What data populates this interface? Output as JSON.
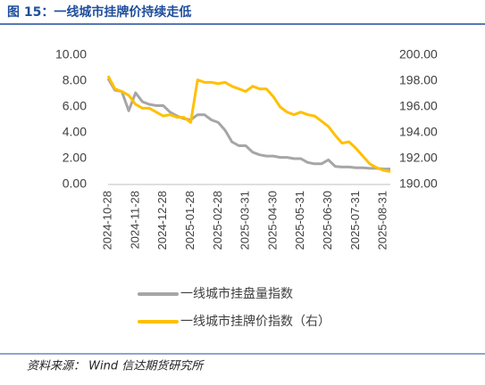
{
  "chart_data": {
    "type": "line",
    "title": "图 15：一线城市挂牌价持续走低",
    "source": "资料来源： Wind 信达期货研究所",
    "categories": [
      "2024-10-28",
      null,
      null,
      null,
      "2024-11-28",
      null,
      null,
      null,
      "2024-12-28",
      null,
      null,
      null,
      "2025-01-28",
      null,
      null,
      null,
      "2025-02-28",
      null,
      null,
      null,
      "2025-03-31",
      null,
      null,
      null,
      "2025-04-30",
      null,
      null,
      null,
      "2025-05-31",
      null,
      null,
      null,
      "2025-06-30",
      null,
      null,
      null,
      "2025-07-31",
      null,
      null,
      null,
      "2025-08-31",
      null
    ],
    "series": [
      {
        "name": "一线城市挂盘量指数",
        "color": "#a6a6a6",
        "values": [
          8.2,
          7.3,
          7.2,
          5.7,
          7.1,
          6.4,
          6.2,
          6.1,
          6.1,
          5.6,
          5.3,
          5.1,
          5.0,
          5.4,
          5.4,
          5.0,
          4.8,
          4.2,
          3.3,
          3.0,
          3.0,
          2.5,
          2.3,
          2.2,
          2.2,
          2.1,
          2.1,
          2.0,
          2.0,
          1.7,
          1.6,
          1.6,
          1.9,
          1.4,
          1.35,
          1.35,
          1.3,
          1.3,
          1.25,
          1.25,
          1.2,
          1.2
        ]
      },
      {
        "name": "一线城市挂牌价指数（右）",
        "color": "#ffc000",
        "axis": "y2",
        "values": [
          198.4,
          197.4,
          197.2,
          196.9,
          196.2,
          195.9,
          195.9,
          195.6,
          195.3,
          195.4,
          195.2,
          195.2,
          194.8,
          198.1,
          197.9,
          197.9,
          197.8,
          197.9,
          197.6,
          197.4,
          197.2,
          197.6,
          197.4,
          197.4,
          196.8,
          196.0,
          195.6,
          195.4,
          195.6,
          195.4,
          195.3,
          194.9,
          194.5,
          193.8,
          193.2,
          193.3,
          192.8,
          192.2,
          191.6,
          191.3,
          191.1,
          191.0
        ]
      }
    ],
    "ylim": [
      0,
      10
    ],
    "yticks": [
      {
        "value": 0,
        "label": "0.00"
      },
      {
        "value": 2,
        "label": "2.00"
      },
      {
        "value": 4,
        "label": "4.00"
      },
      {
        "value": 6,
        "label": "6.00"
      },
      {
        "value": 8,
        "label": "8.00"
      },
      {
        "value": 10,
        "label": "10.00"
      }
    ],
    "y2lim": [
      190,
      200
    ],
    "y2ticks": [
      {
        "value": 190,
        "label": "190.00"
      },
      {
        "value": 192,
        "label": "192.00"
      },
      {
        "value": 194,
        "label": "194.00"
      },
      {
        "value": 196,
        "label": "196.00"
      },
      {
        "value": 198,
        "label": "198.00"
      },
      {
        "value": 200,
        "label": "200.00"
      }
    ]
  }
}
